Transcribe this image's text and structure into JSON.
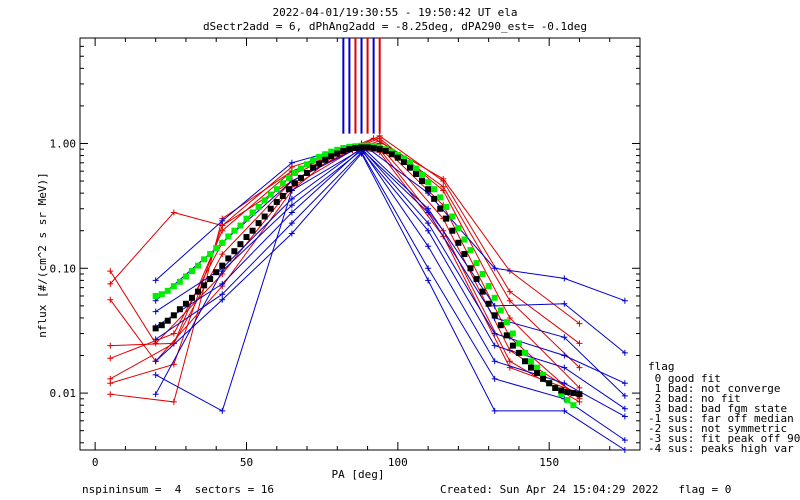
{
  "header": {
    "line1": "2022-04-01/19:30:55 - 19:50:42 UT ela",
    "line2": "dSectr2add = 6, dPhAng2add = -8.25deg, dPA290_est=  -0.1deg"
  },
  "footer": {
    "left": "nspininsum =  4  sectors = 16",
    "right": "Created: Sun Apr 24 15:04:29 2022   flag = 0"
  },
  "legend": {
    "title": "flag",
    "items": [
      " 0 good fit",
      " 1 bad: not converge",
      " 2 bad: no fit",
      " 3 bad: bad fgm state",
      "-1 sus: far off median",
      "-2 sus: not symmetric",
      "-3 sus: fit peak off 90",
      "-4 sus: peaks high var"
    ]
  },
  "colors": {
    "red": "#e00000",
    "blue": "#0000cc",
    "green": "#00ee00",
    "black": "#000000"
  },
  "chart_data": {
    "type": "line",
    "xlabel": "PA [deg]",
    "ylabel": "nflux [#/(cm^2 s sr MeV)]",
    "xlim": [
      -5,
      180
    ],
    "ylim": [
      0.0035,
      7
    ],
    "ylog": true,
    "xticks": [
      0,
      50,
      100,
      150
    ],
    "yticks": [
      {
        "value": 1.0,
        "label": "1.00"
      },
      {
        "value": 0.1,
        "label": "0.10"
      },
      {
        "value": 0.01,
        "label": "0.01"
      }
    ],
    "series": [
      {
        "color": "red",
        "x": [
          5,
          20,
          42,
          65,
          80,
          92,
          115,
          137,
          160
        ],
        "y": [
          0.056,
          0.018,
          0.072,
          0.42,
          0.84,
          1.1,
          0.52,
          0.095,
          0.036
        ]
      },
      {
        "color": "red",
        "x": [
          5,
          26,
          42,
          65,
          85,
          94,
          115,
          137,
          160
        ],
        "y": [
          0.075,
          0.28,
          0.22,
          0.5,
          0.9,
          1.15,
          0.5,
          0.065,
          0.025
        ]
      },
      {
        "color": "red",
        "x": [
          5,
          20,
          42,
          65,
          85,
          94,
          115,
          137,
          160
        ],
        "y": [
          0.095,
          0.025,
          0.09,
          0.45,
          0.88,
          1.05,
          0.45,
          0.055,
          0.016
        ]
      },
      {
        "color": "red",
        "x": [
          5,
          26,
          42,
          65,
          85,
          94,
          115,
          137,
          160
        ],
        "y": [
          0.024,
          0.025,
          0.13,
          0.5,
          0.9,
          1.1,
          0.42,
          0.04,
          0.011
        ]
      },
      {
        "color": "red",
        "x": [
          5,
          26,
          42,
          65,
          85,
          94,
          115,
          137,
          160
        ],
        "y": [
          0.019,
          0.03,
          0.16,
          0.56,
          0.92,
          1.0,
          0.32,
          0.028,
          0.009
        ]
      },
      {
        "color": "red",
        "x": [
          5,
          26,
          42,
          65,
          85,
          94,
          115,
          137,
          160
        ],
        "y": [
          0.013,
          0.025,
          0.2,
          0.6,
          0.93,
          0.95,
          0.25,
          0.022,
          0.0095
        ]
      },
      {
        "color": "red",
        "x": [
          5,
          26,
          42,
          65,
          85,
          94,
          115,
          137,
          160
        ],
        "y": [
          0.012,
          0.017,
          0.22,
          0.65,
          0.92,
          0.9,
          0.2,
          0.018,
          0.0085
        ]
      },
      {
        "color": "red",
        "x": [
          5,
          26,
          42,
          65,
          85,
          94,
          115,
          137,
          160
        ],
        "y": [
          0.0098,
          0.0085,
          0.25,
          0.6,
          0.9,
          0.85,
          0.18,
          0.016,
          0.01
        ]
      },
      {
        "color": "blue",
        "x": [
          20,
          42,
          65,
          88,
          110,
          132,
          155,
          175
        ],
        "y": [
          0.08,
          0.24,
          0.7,
          1.0,
          0.4,
          0.1,
          0.083,
          0.055
        ]
      },
      {
        "color": "blue",
        "x": [
          20,
          42,
          65,
          88,
          110,
          132,
          155,
          175
        ],
        "y": [
          0.055,
          0.16,
          0.5,
          0.95,
          0.3,
          0.05,
          0.052,
          0.021
        ]
      },
      {
        "color": "blue",
        "x": [
          20,
          42,
          65,
          88,
          110,
          132,
          155,
          175
        ],
        "y": [
          0.045,
          0.1,
          0.36,
          0.92,
          0.23,
          0.03,
          0.02,
          0.012
        ]
      },
      {
        "color": "blue",
        "x": [
          20,
          42,
          65,
          88,
          110,
          132,
          155,
          175
        ],
        "y": [
          0.034,
          0.075,
          0.28,
          0.9,
          0.15,
          0.018,
          0.012,
          0.0065
        ]
      },
      {
        "color": "blue",
        "x": [
          20,
          42,
          65,
          88,
          110,
          132,
          155,
          175
        ],
        "y": [
          0.027,
          0.062,
          0.23,
          0.85,
          0.1,
          0.013,
          0.009,
          0.0042
        ]
      },
      {
        "color": "blue",
        "x": [
          20,
          42,
          65,
          88,
          110,
          132,
          155,
          175
        ],
        "y": [
          0.018,
          0.056,
          0.19,
          0.83,
          0.08,
          0.0072,
          0.0072,
          0.0035
        ]
      },
      {
        "color": "blue",
        "x": [
          20,
          42,
          65,
          88,
          110,
          132,
          155,
          175
        ],
        "y": [
          0.0098,
          0.095,
          0.32,
          0.88,
          0.2,
          0.024,
          0.016,
          0.0075
        ]
      },
      {
        "color": "blue",
        "x": [
          20,
          42,
          65,
          88,
          110,
          132,
          155,
          175
        ],
        "y": [
          0.014,
          0.0072,
          0.42,
          0.9,
          0.28,
          0.04,
          0.028,
          0.0095
        ]
      }
    ],
    "fit_green": {
      "color": "green",
      "x": [
        20,
        22,
        24,
        26,
        28,
        30,
        32,
        34,
        36,
        38,
        40,
        42,
        44,
        46,
        48,
        50,
        52,
        54,
        56,
        58,
        60,
        62,
        64,
        66,
        68,
        70,
        72,
        74,
        76,
        78,
        80,
        82,
        84,
        86,
        88,
        90,
        92,
        94,
        96,
        98,
        100,
        102,
        104,
        106,
        108,
        110,
        112,
        114,
        116,
        118,
        120,
        122,
        124,
        126,
        128,
        130,
        132,
        134,
        136,
        138,
        140,
        142,
        144,
        146,
        148,
        150,
        152,
        154,
        156,
        158
      ],
      "y": [
        0.06,
        0.062,
        0.066,
        0.072,
        0.078,
        0.086,
        0.095,
        0.105,
        0.118,
        0.13,
        0.145,
        0.16,
        0.18,
        0.2,
        0.22,
        0.25,
        0.28,
        0.31,
        0.35,
        0.39,
        0.43,
        0.48,
        0.53,
        0.58,
        0.63,
        0.68,
        0.73,
        0.78,
        0.82,
        0.86,
        0.89,
        0.92,
        0.94,
        0.95,
        0.96,
        0.96,
        0.95,
        0.93,
        0.9,
        0.86,
        0.81,
        0.76,
        0.7,
        0.63,
        0.56,
        0.49,
        0.43,
        0.37,
        0.31,
        0.26,
        0.21,
        0.17,
        0.14,
        0.11,
        0.09,
        0.072,
        0.058,
        0.046,
        0.037,
        0.03,
        0.025,
        0.021,
        0.018,
        0.016,
        0.014,
        0.012,
        0.011,
        0.0098,
        0.0088,
        0.008
      ]
    },
    "fit_black": {
      "color": "black",
      "x": [
        20,
        22,
        24,
        26,
        28,
        30,
        32,
        34,
        36,
        38,
        40,
        42,
        44,
        46,
        48,
        50,
        52,
        54,
        56,
        58,
        60,
        62,
        64,
        66,
        68,
        70,
        72,
        74,
        76,
        78,
        80,
        82,
        84,
        86,
        88,
        90,
        92,
        94,
        96,
        98,
        100,
        102,
        104,
        106,
        108,
        110,
        112,
        114,
        116,
        118,
        120,
        122,
        124,
        126,
        128,
        130,
        132,
        134,
        136,
        138,
        140,
        142,
        144,
        146,
        148,
        150,
        152,
        154,
        156,
        158,
        160
      ],
      "y": [
        0.033,
        0.035,
        0.038,
        0.042,
        0.047,
        0.052,
        0.058,
        0.065,
        0.073,
        0.082,
        0.093,
        0.105,
        0.12,
        0.137,
        0.156,
        0.178,
        0.2,
        0.23,
        0.26,
        0.3,
        0.34,
        0.38,
        0.43,
        0.48,
        0.53,
        0.58,
        0.64,
        0.69,
        0.74,
        0.79,
        0.83,
        0.87,
        0.9,
        0.92,
        0.93,
        0.93,
        0.92,
        0.9,
        0.87,
        0.82,
        0.77,
        0.71,
        0.64,
        0.57,
        0.5,
        0.43,
        0.36,
        0.3,
        0.25,
        0.2,
        0.16,
        0.13,
        0.1,
        0.082,
        0.065,
        0.052,
        0.042,
        0.035,
        0.029,
        0.024,
        0.021,
        0.018,
        0.016,
        0.0145,
        0.013,
        0.012,
        0.011,
        0.0105,
        0.0102,
        0.01,
        0.0098
      ]
    },
    "peak_markers": [
      {
        "x": 82,
        "color": "blue"
      },
      {
        "x": 84,
        "color": "blue"
      },
      {
        "x": 86,
        "color": "red"
      },
      {
        "x": 88,
        "color": "blue"
      },
      {
        "x": 90,
        "color": "red"
      },
      {
        "x": 92,
        "color": "blue"
      },
      {
        "x": 94,
        "color": "red"
      }
    ]
  }
}
